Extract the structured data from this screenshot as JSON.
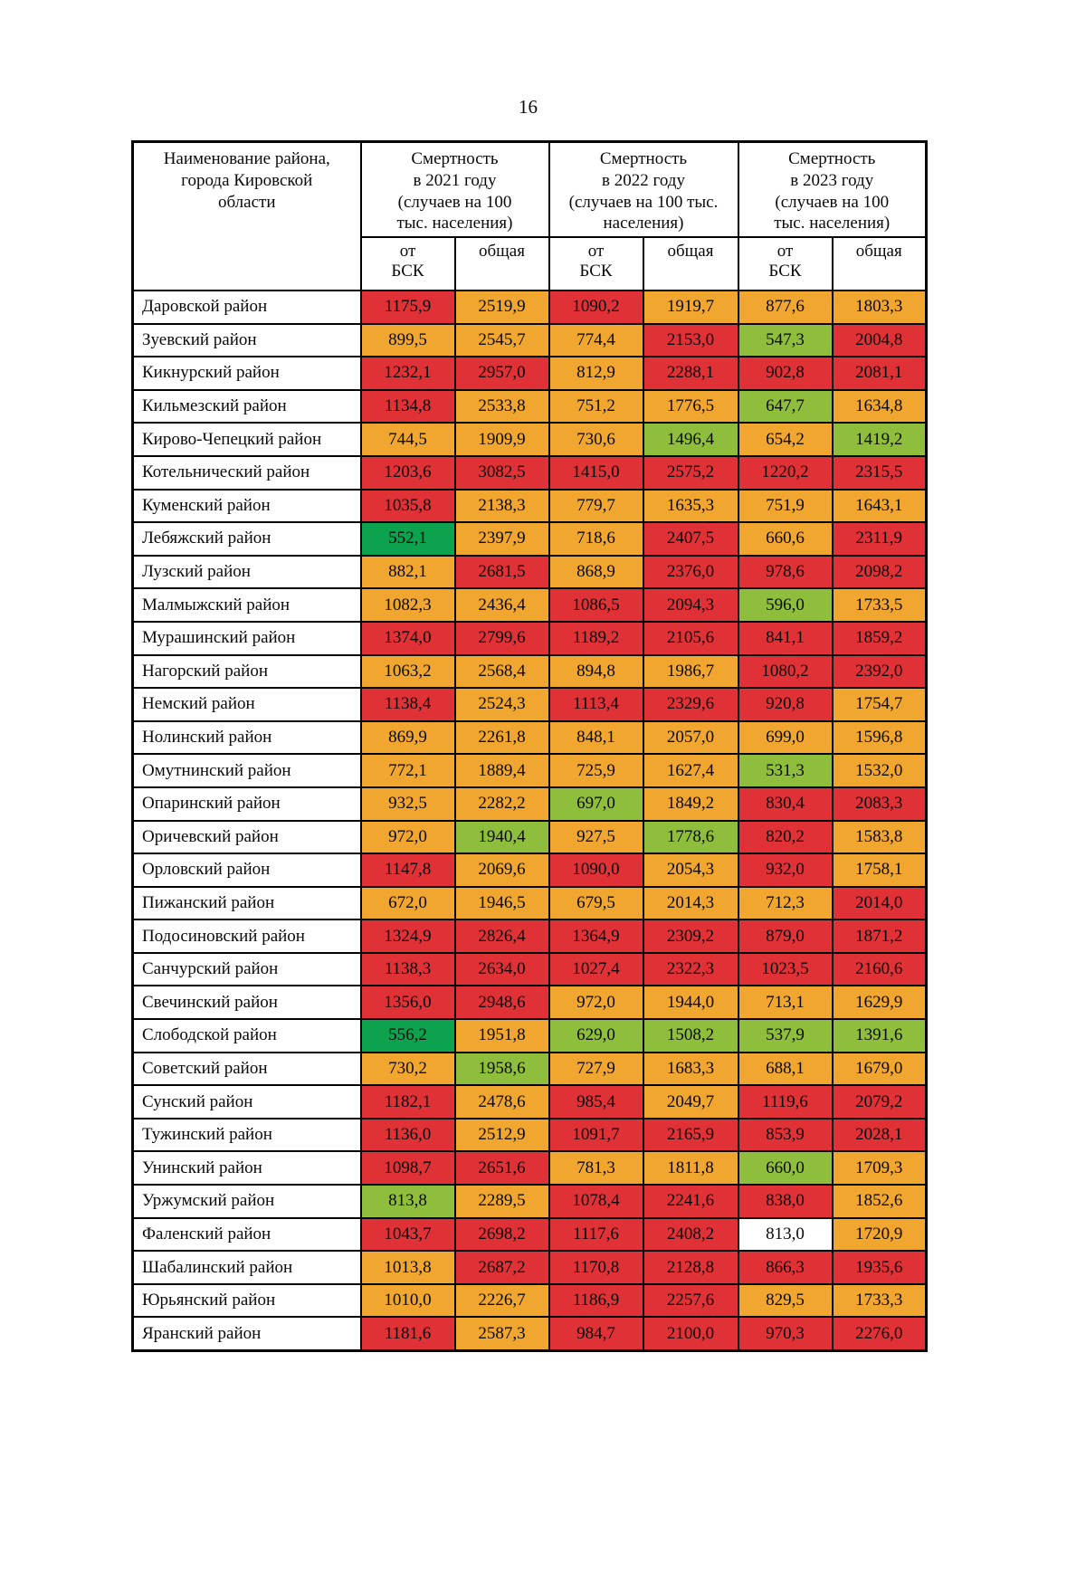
{
  "page": {
    "number": "16"
  },
  "palette": {
    "red": "#e03236",
    "orange": "#f0a62f",
    "green": "#8fbe3c",
    "darkgreen": "#0da24d",
    "white": "#ffffff"
  },
  "table": {
    "name_header": "Наименование района,\nгорода Кировской\nобласти",
    "year_headers": [
      "Смертность\nв 2021 году\n(случаев на 100\nтыс. населения)",
      "Смертность\nв 2022 году\n(случаев на 100 тыс.\nнаселения)",
      "Смертность\nв 2023 году\n(случаев на 100\nтыс. населения)"
    ],
    "sub_bsk": "от\nБСК",
    "sub_total": "общая",
    "rows": [
      {
        "name": "Даровской район",
        "values": [
          "1175,9",
          "2519,9",
          "1090,2",
          "1919,7",
          "877,6",
          "1803,3"
        ],
        "colors": [
          "red",
          "orange",
          "red",
          "orange",
          "orange",
          "orange"
        ]
      },
      {
        "name": "Зуевский район",
        "values": [
          "899,5",
          "2545,7",
          "774,4",
          "2153,0",
          "547,3",
          "2004,8"
        ],
        "colors": [
          "orange",
          "orange",
          "orange",
          "red",
          "green",
          "red"
        ]
      },
      {
        "name": "Кикнурский район",
        "values": [
          "1232,1",
          "2957,0",
          "812,9",
          "2288,1",
          "902,8",
          "2081,1"
        ],
        "colors": [
          "red",
          "red",
          "orange",
          "red",
          "red",
          "red"
        ]
      },
      {
        "name": "Кильмезский район",
        "values": [
          "1134,8",
          "2533,8",
          "751,2",
          "1776,5",
          "647,7",
          "1634,8"
        ],
        "colors": [
          "red",
          "orange",
          "orange",
          "orange",
          "green",
          "orange"
        ]
      },
      {
        "name": "Кирово-Чепецкий район",
        "values": [
          "744,5",
          "1909,9",
          "730,6",
          "1496,4",
          "654,2",
          "1419,2"
        ],
        "colors": [
          "orange",
          "orange",
          "orange",
          "green",
          "orange",
          "green"
        ]
      },
      {
        "name": "Котельнический район",
        "values": [
          "1203,6",
          "3082,5",
          "1415,0",
          "2575,2",
          "1220,2",
          "2315,5"
        ],
        "colors": [
          "red",
          "red",
          "red",
          "red",
          "red",
          "red"
        ]
      },
      {
        "name": "Куменский район",
        "values": [
          "1035,8",
          "2138,3",
          "779,7",
          "1635,3",
          "751,9",
          "1643,1"
        ],
        "colors": [
          "red",
          "orange",
          "orange",
          "orange",
          "orange",
          "orange"
        ]
      },
      {
        "name": "Лебяжский район",
        "values": [
          "552,1",
          "2397,9",
          "718,6",
          "2407,5",
          "660,6",
          "2311,9"
        ],
        "colors": [
          "darkgreen",
          "orange",
          "orange",
          "red",
          "orange",
          "red"
        ]
      },
      {
        "name": "Лузский район",
        "values": [
          "882,1",
          "2681,5",
          "868,9",
          "2376,0",
          "978,6",
          "2098,2"
        ],
        "colors": [
          "orange",
          "red",
          "orange",
          "red",
          "red",
          "red"
        ]
      },
      {
        "name": "Малмыжский район",
        "values": [
          "1082,3",
          "2436,4",
          "1086,5",
          "2094,3",
          "596,0",
          "1733,5"
        ],
        "colors": [
          "orange",
          "orange",
          "red",
          "red",
          "green",
          "orange"
        ]
      },
      {
        "name": "Мурашинский район",
        "values": [
          "1374,0",
          "2799,6",
          "1189,2",
          "2105,6",
          "841,1",
          "1859,2"
        ],
        "colors": [
          "red",
          "red",
          "red",
          "red",
          "red",
          "red"
        ]
      },
      {
        "name": "Нагорский район",
        "values": [
          "1063,2",
          "2568,4",
          "894,8",
          "1986,7",
          "1080,2",
          "2392,0"
        ],
        "colors": [
          "orange",
          "orange",
          "orange",
          "orange",
          "red",
          "red"
        ]
      },
      {
        "name": "Немский район",
        "values": [
          "1138,4",
          "2524,3",
          "1113,4",
          "2329,6",
          "920,8",
          "1754,7"
        ],
        "colors": [
          "red",
          "orange",
          "red",
          "red",
          "red",
          "orange"
        ]
      },
      {
        "name": "Нолинский район",
        "values": [
          "869,9",
          "2261,8",
          "848,1",
          "2057,0",
          "699,0",
          "1596,8"
        ],
        "colors": [
          "orange",
          "orange",
          "orange",
          "orange",
          "orange",
          "orange"
        ]
      },
      {
        "name": "Омутнинский район",
        "values": [
          "772,1",
          "1889,4",
          "725,9",
          "1627,4",
          "531,3",
          "1532,0"
        ],
        "colors": [
          "orange",
          "orange",
          "orange",
          "orange",
          "green",
          "orange"
        ]
      },
      {
        "name": "Опаринский район",
        "values": [
          "932,5",
          "2282,2",
          "697,0",
          "1849,2",
          "830,4",
          "2083,3"
        ],
        "colors": [
          "orange",
          "orange",
          "green",
          "orange",
          "red",
          "red"
        ]
      },
      {
        "name": "Оричевский район",
        "values": [
          "972,0",
          "1940,4",
          "927,5",
          "1778,6",
          "820,2",
          "1583,8"
        ],
        "colors": [
          "orange",
          "green",
          "orange",
          "green",
          "red",
          "orange"
        ]
      },
      {
        "name": "Орловский район",
        "values": [
          "1147,8",
          "2069,6",
          "1090,0",
          "2054,3",
          "932,0",
          "1758,1"
        ],
        "colors": [
          "red",
          "orange",
          "red",
          "orange",
          "red",
          "orange"
        ]
      },
      {
        "name": "Пижанский район",
        "values": [
          "672,0",
          "1946,5",
          "679,5",
          "2014,3",
          "712,3",
          "2014,0"
        ],
        "colors": [
          "orange",
          "orange",
          "orange",
          "orange",
          "orange",
          "red"
        ]
      },
      {
        "name": "Подосиновский район",
        "values": [
          "1324,9",
          "2826,4",
          "1364,9",
          "2309,2",
          "879,0",
          "1871,2"
        ],
        "colors": [
          "red",
          "red",
          "red",
          "red",
          "red",
          "red"
        ]
      },
      {
        "name": "Санчурский район",
        "values": [
          "1138,3",
          "2634,0",
          "1027,4",
          "2322,3",
          "1023,5",
          "2160,6"
        ],
        "colors": [
          "red",
          "red",
          "red",
          "red",
          "red",
          "red"
        ]
      },
      {
        "name": "Свечинский район",
        "values": [
          "1356,0",
          "2948,6",
          "972,0",
          "1944,0",
          "713,1",
          "1629,9"
        ],
        "colors": [
          "red",
          "red",
          "orange",
          "orange",
          "orange",
          "orange"
        ]
      },
      {
        "name": "Слободской район",
        "values": [
          "556,2",
          "1951,8",
          "629,0",
          "1508,2",
          "537,9",
          "1391,6"
        ],
        "colors": [
          "darkgreen",
          "orange",
          "green",
          "green",
          "green",
          "green"
        ]
      },
      {
        "name": "Советский район",
        "values": [
          "730,2",
          "1958,6",
          "727,9",
          "1683,3",
          "688,1",
          "1679,0"
        ],
        "colors": [
          "orange",
          "green",
          "orange",
          "orange",
          "orange",
          "orange"
        ]
      },
      {
        "name": "Сунский район",
        "values": [
          "1182,1",
          "2478,6",
          "985,4",
          "2049,7",
          "1119,6",
          "2079,2"
        ],
        "colors": [
          "red",
          "orange",
          "red",
          "orange",
          "red",
          "red"
        ]
      },
      {
        "name": "Тужинский район",
        "values": [
          "1136,0",
          "2512,9",
          "1091,7",
          "2165,9",
          "853,9",
          "2028,1"
        ],
        "colors": [
          "red",
          "orange",
          "red",
          "red",
          "red",
          "red"
        ]
      },
      {
        "name": "Унинский район",
        "values": [
          "1098,7",
          "2651,6",
          "781,3",
          "1811,8",
          "660,0",
          "1709,3"
        ],
        "colors": [
          "red",
          "red",
          "orange",
          "orange",
          "green",
          "orange"
        ]
      },
      {
        "name": "Уржумский район",
        "values": [
          "813,8",
          "2289,5",
          "1078,4",
          "2241,6",
          "838,0",
          "1852,6"
        ],
        "colors": [
          "green",
          "orange",
          "red",
          "red",
          "red",
          "orange"
        ]
      },
      {
        "name": "Фаленский район",
        "values": [
          "1043,7",
          "2698,2",
          "1117,6",
          "2408,2",
          "813,0",
          "1720,9"
        ],
        "colors": [
          "red",
          "red",
          "red",
          "red",
          "white",
          "orange"
        ]
      },
      {
        "name": "Шабалинский район",
        "values": [
          "1013,8",
          "2687,2",
          "1170,8",
          "2128,8",
          "866,3",
          "1935,6"
        ],
        "colors": [
          "orange",
          "red",
          "red",
          "red",
          "red",
          "red"
        ]
      },
      {
        "name": "Юрьянский район",
        "values": [
          "1010,0",
          "2226,7",
          "1186,9",
          "2257,6",
          "829,5",
          "1733,3"
        ],
        "colors": [
          "orange",
          "orange",
          "red",
          "red",
          "orange",
          "orange"
        ]
      },
      {
        "name": "Яранский район",
        "values": [
          "1181,6",
          "2587,3",
          "984,7",
          "2100,0",
          "970,3",
          "2276,0"
        ],
        "colors": [
          "red",
          "orange",
          "red",
          "red",
          "red",
          "red"
        ]
      }
    ]
  }
}
